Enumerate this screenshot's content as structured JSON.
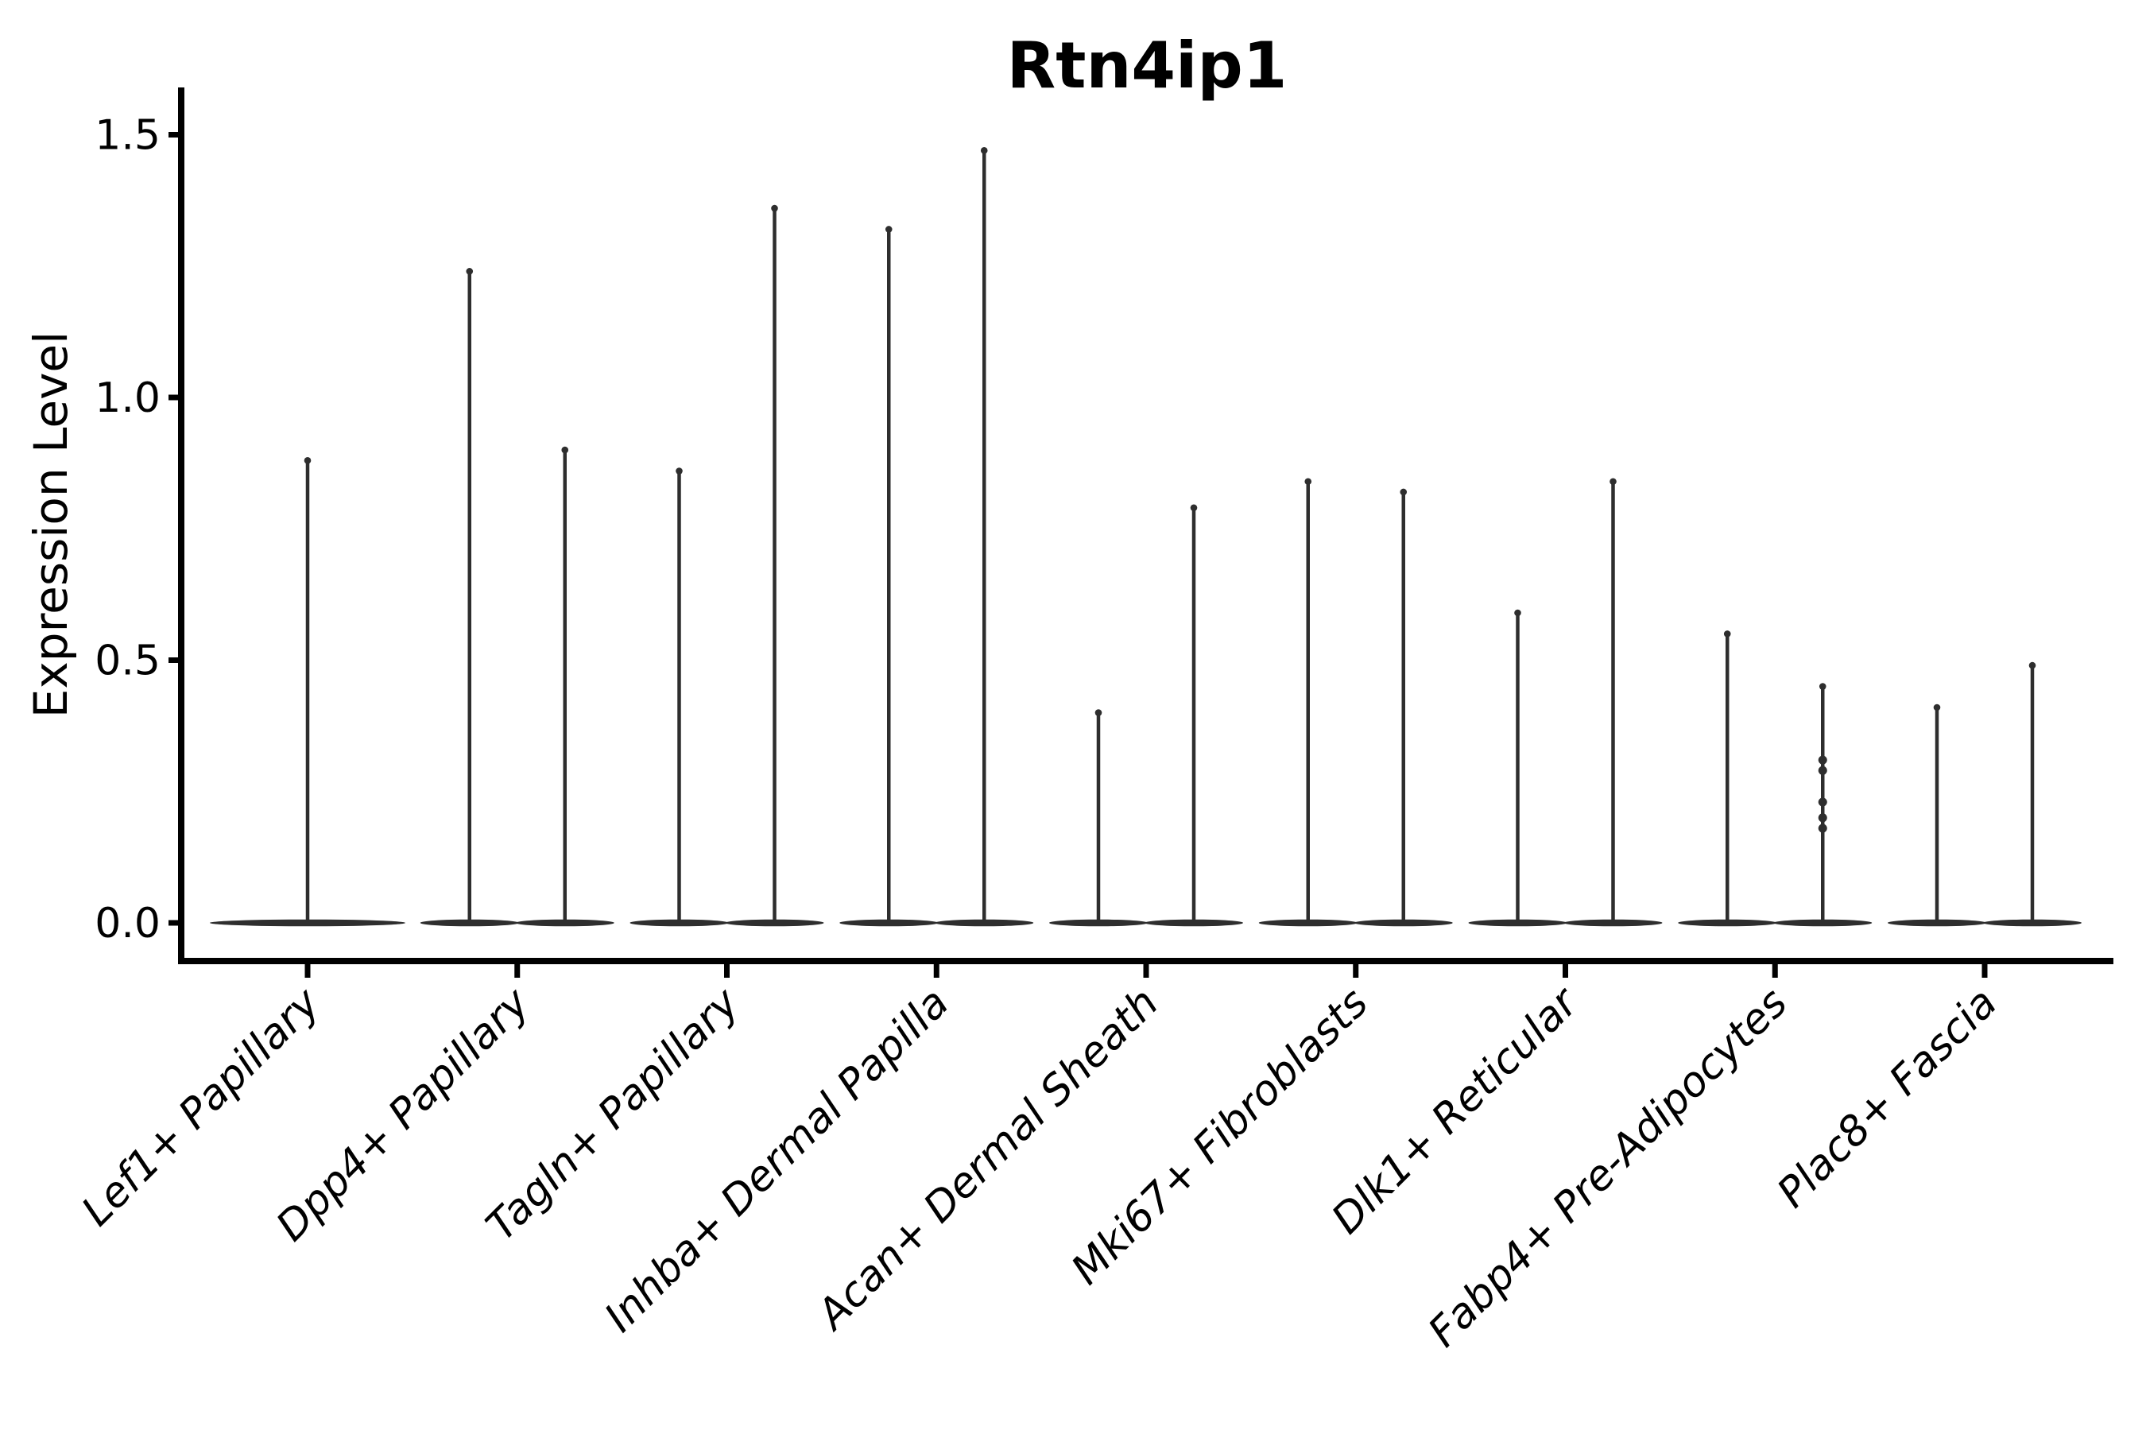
{
  "chart_data": {
    "type": "violin",
    "title": "Rtn4ip1",
    "ylabel": "Expression Level",
    "xlabel": "",
    "ytick_labels": [
      "0.0",
      "0.5",
      "1.0",
      "1.5"
    ],
    "ytick_values": [
      0.0,
      0.5,
      1.0,
      1.5
    ],
    "ylim": [
      -0.073,
      1.59
    ],
    "grid": false,
    "legend": "none",
    "baseline_value": 0.0,
    "categories": [
      "Lef1+ Papillary",
      "Dpp4+ Papillary",
      "Tagln+ Papillary",
      "Inhba+ Dermal Papilla",
      "Acan+ Dermal Sheath",
      "Mki67+ Fibroblasts",
      "Dlk1+ Reticular",
      "Fabp4+ Pre-Adipocytes",
      "Plac8+ Fascia"
    ],
    "series": [
      {
        "category": "Lef1+ Papillary",
        "violins": [
          {
            "position": "center",
            "max": 0.88,
            "points": []
          }
        ]
      },
      {
        "category": "Dpp4+ Papillary",
        "violins": [
          {
            "position": "left",
            "max": 1.24,
            "points": []
          },
          {
            "position": "right",
            "max": 0.9,
            "points": []
          }
        ]
      },
      {
        "category": "Tagln+ Papillary",
        "violins": [
          {
            "position": "left",
            "max": 0.86,
            "points": []
          },
          {
            "position": "right",
            "max": 1.36,
            "points": []
          }
        ]
      },
      {
        "category": "Inhba+ Dermal Papilla",
        "violins": [
          {
            "position": "left",
            "max": 1.32,
            "points": []
          },
          {
            "position": "right",
            "max": 1.47,
            "points": []
          }
        ]
      },
      {
        "category": "Acan+ Dermal Sheath",
        "violins": [
          {
            "position": "left",
            "max": 0.4,
            "points": []
          },
          {
            "position": "right",
            "max": 0.79,
            "points": []
          }
        ]
      },
      {
        "category": "Mki67+ Fibroblasts",
        "violins": [
          {
            "position": "left",
            "max": 0.84,
            "points": []
          },
          {
            "position": "right",
            "max": 0.82,
            "points": []
          }
        ]
      },
      {
        "category": "Dlk1+ Reticular",
        "violins": [
          {
            "position": "left",
            "max": 0.59,
            "points": []
          },
          {
            "position": "right",
            "max": 0.84,
            "points": []
          }
        ]
      },
      {
        "category": "Fabp4+ Pre-Adipocytes",
        "violins": [
          {
            "position": "left",
            "max": 0.55,
            "points": []
          },
          {
            "position": "right",
            "max": 0.45,
            "points": [
              0.31,
              0.29,
              0.23,
              0.2,
              0.18
            ]
          }
        ]
      },
      {
        "category": "Plac8+ Fascia",
        "violins": [
          {
            "position": "left",
            "max": 0.41,
            "points": []
          },
          {
            "position": "right",
            "max": 0.49,
            "points": []
          }
        ]
      }
    ],
    "colors": {
      "violin": "#2e2e2e",
      "axis": "#000000",
      "text": "#000000",
      "background": "#ffffff"
    }
  }
}
